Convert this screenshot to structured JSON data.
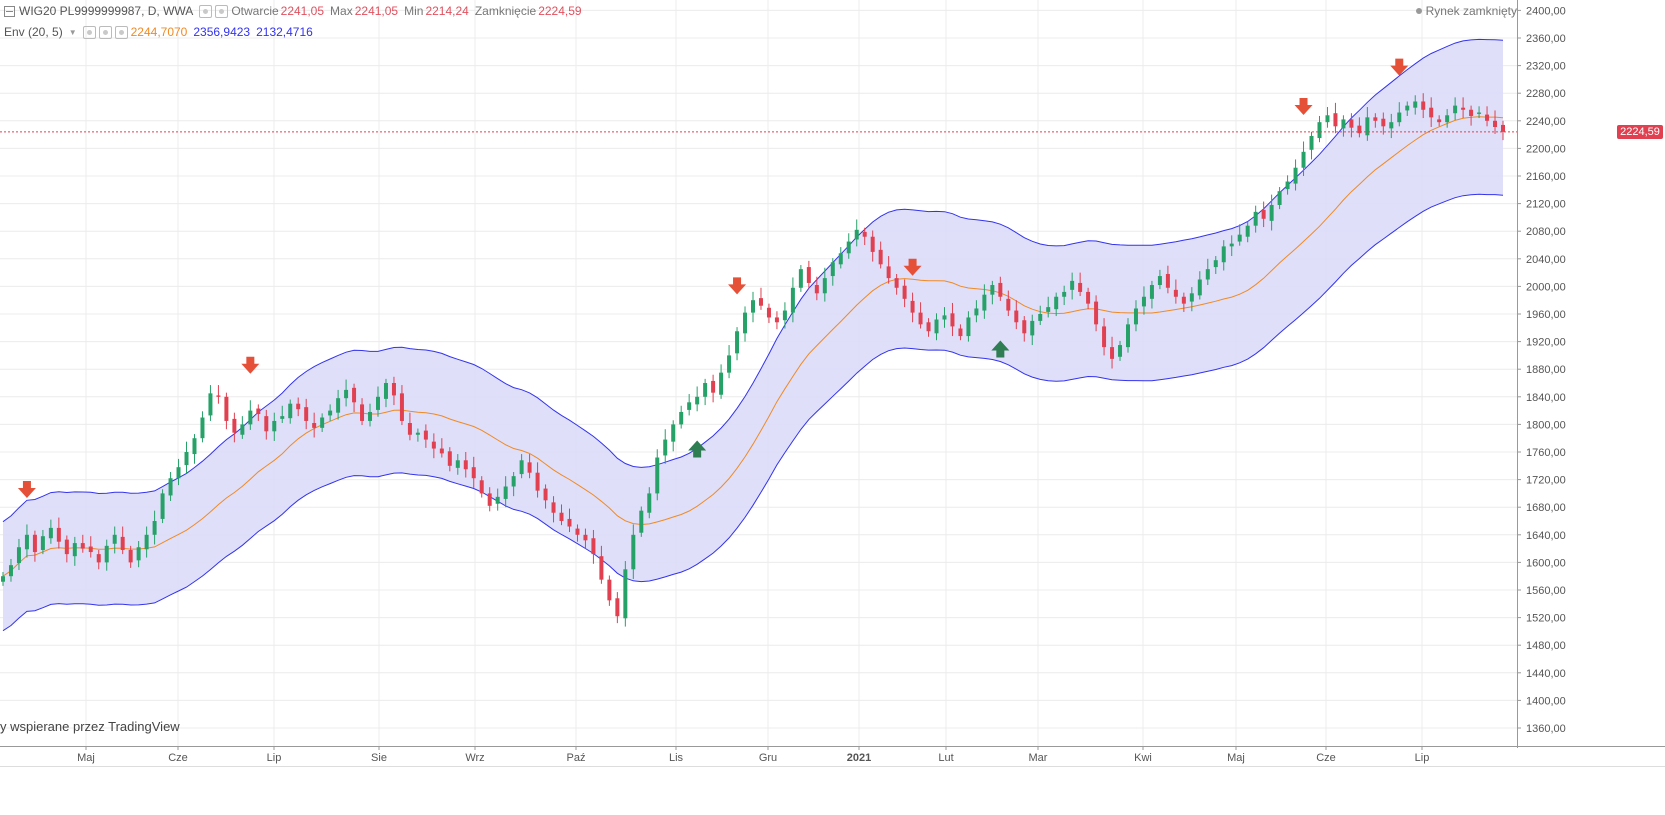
{
  "header": {
    "symbol": "WIG20 PL9999999987, D, WWA",
    "open_label": "Otwarcie",
    "open": "2241,05",
    "high_label": "Max",
    "high": "2241,05",
    "low_label": "Min",
    "low": "2214,24",
    "close_label": "Zamknięcie",
    "close": "2224,59"
  },
  "indicator": {
    "name": "Env (20, 5)",
    "basis": "2244,7070",
    "upper": "2356,9423",
    "lower": "2132,4716",
    "basis_color": "#f08a24",
    "band_color": "#3333ee",
    "fill_color": "#dcdcfa"
  },
  "market_status": "Rynek zamknięty",
  "watermark": "y wspierane przez TradingView",
  "last_price_tag": "2224,59",
  "colors": {
    "up": "#26a269",
    "down": "#e04050",
    "signal_down": "#e55039",
    "signal_up": "#2f7d52"
  },
  "chart_data": {
    "type": "candlestick",
    "x_tick_labels": [
      "Maj",
      "Cze",
      "Lip",
      "Sie",
      "Wrz",
      "Paź",
      "Lis",
      "Gru",
      "2021",
      "Lut",
      "Mar",
      "Kwi",
      "Maj",
      "Cze",
      "Lip"
    ],
    "y_ticks": [
      "2400,00",
      "2360,00",
      "2320,00",
      "2280,00",
      "2240,00",
      "2200,00",
      "2160,00",
      "2120,00",
      "2080,00",
      "2040,00",
      "2000,00",
      "1960,00",
      "1920,00",
      "1880,00",
      "1840,00",
      "1800,00",
      "1760,00",
      "1720,00",
      "1680,00",
      "1640,00",
      "1600,00",
      "1560,00",
      "1520,00",
      "1480,00",
      "1440,00",
      "1400,00",
      "1360,00"
    ],
    "ylim": [
      1340,
      2410
    ],
    "grid": true,
    "close_series": [
      1580,
      1596,
      1622,
      1640,
      1615,
      1638,
      1650,
      1630,
      1612,
      1628,
      1620,
      1615,
      1600,
      1624,
      1640,
      1618,
      1600,
      1622,
      1640,
      1660,
      1700,
      1722,
      1738,
      1760,
      1780,
      1810,
      1845,
      1840,
      1805,
      1788,
      1800,
      1820,
      1815,
      1790,
      1805,
      1812,
      1830,
      1822,
      1805,
      1795,
      1810,
      1820,
      1838,
      1850,
      1832,
      1805,
      1818,
      1840,
      1860,
      1842,
      1805,
      1785,
      1788,
      1778,
      1765,
      1758,
      1740,
      1748,
      1735,
      1722,
      1700,
      1682,
      1695,
      1710,
      1725,
      1748,
      1730,
      1704,
      1690,
      1672,
      1660,
      1652,
      1640,
      1632,
      1612,
      1575,
      1545,
      1522,
      1590,
      1640,
      1675,
      1700,
      1752,
      1778,
      1800,
      1818,
      1832,
      1840,
      1860,
      1846,
      1875,
      1900,
      1935,
      1962,
      1980,
      1972,
      1955,
      1948,
      1965,
      1998,
      2025,
      2005,
      1990,
      2012,
      2035,
      2048,
      2065,
      2082,
      2072,
      2050,
      2032,
      2012,
      1998,
      1982,
      1962,
      1945,
      1935,
      1952,
      1958,
      1942,
      1928,
      1955,
      1968,
      1988,
      2002,
      1985,
      1965,
      1948,
      1932,
      1950,
      1960,
      1970,
      1985,
      1992,
      2008,
      1992,
      1975,
      1945,
      1912,
      1895,
      1915,
      1945,
      1968,
      1985,
      2002,
      2015,
      1998,
      1985,
      1975,
      1990,
      2010,
      2025,
      2038,
      2058,
      2062,
      2075,
      2088,
      2108,
      2098,
      2118,
      2138,
      2152,
      2172,
      2195,
      2218,
      2238,
      2248,
      2232,
      2242,
      2230,
      2222,
      2245,
      2240,
      2232,
      2238,
      2252,
      2262,
      2268,
      2256,
      2245,
      2238,
      2248,
      2262,
      2256,
      2247,
      2252,
      2240,
      2231,
      2224
    ]
  },
  "signals": [
    {
      "type": "down",
      "bar": 3
    },
    {
      "type": "down",
      "bar": 31
    },
    {
      "type": "down",
      "bar": 92
    },
    {
      "type": "up",
      "bar": 87
    },
    {
      "type": "down",
      "bar": 114
    },
    {
      "type": "up",
      "bar": 125
    },
    {
      "type": "down",
      "bar": 163
    },
    {
      "type": "down",
      "bar": 175
    }
  ]
}
